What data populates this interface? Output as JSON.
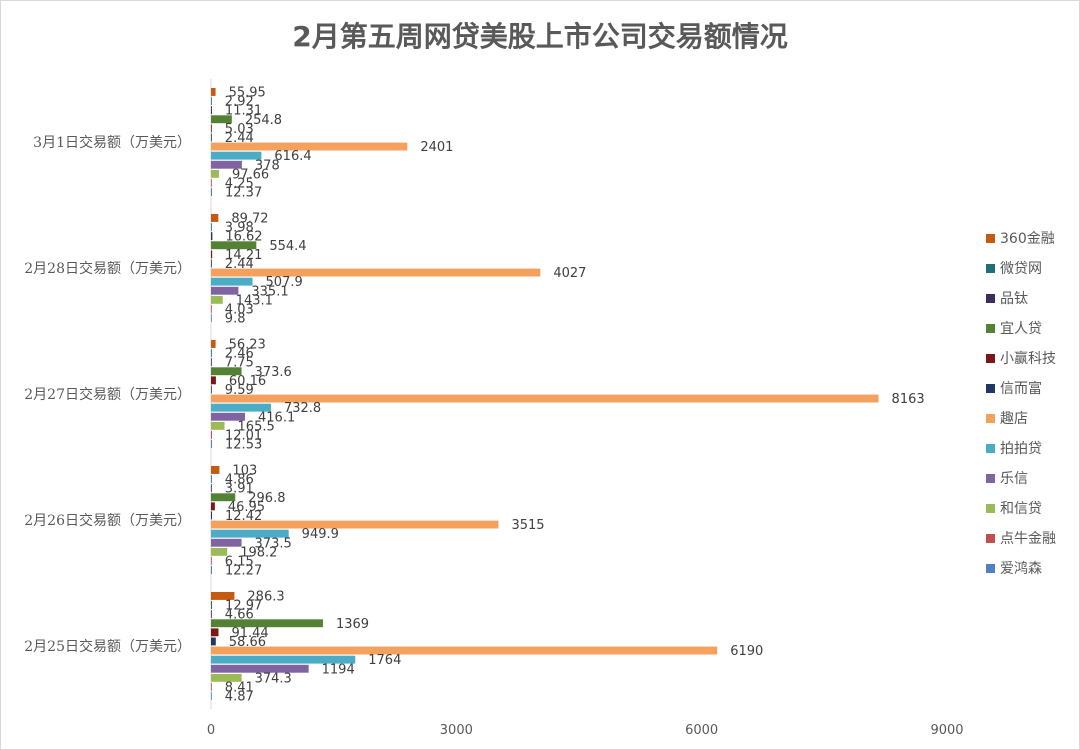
{
  "chart_data": {
    "type": "bar",
    "orientation": "horizontal",
    "title": "2月第五周网贷美股上市公司交易额情况",
    "categories": [
      "3月1日交易额（万美元）",
      "2月28日交易额（万美元）",
      "2月27日交易额（万美元）",
      "2月26日交易额（万美元）",
      "2月25日交易额（万美元）"
    ],
    "xlim": [
      0,
      9000
    ],
    "xticks": [
      0,
      3000,
      6000,
      9000
    ],
    "grid": false,
    "legend_position": "right",
    "series": [
      {
        "name": "360金融",
        "color": "#c55a11",
        "values": [
          55.95,
          89.72,
          56.23,
          103,
          286.3
        ],
        "labels": [
          "55.95",
          "89.72",
          "56.23",
          "103",
          "286.3"
        ]
      },
      {
        "name": "微贷网",
        "color": "#1f6e7a",
        "values": [
          2.92,
          3.98,
          2.46,
          4.86,
          12.97
        ],
        "labels": [
          "2.92",
          "3.98",
          "2.46",
          "4.86",
          "12.97"
        ]
      },
      {
        "name": "品钛",
        "color": "#3d2c60",
        "values": [
          11.31,
          16.62,
          7.75,
          3.91,
          4.66
        ],
        "labels": [
          "11.31",
          "16.62",
          "7.75",
          "3.91",
          "4.66"
        ]
      },
      {
        "name": "宜人贷",
        "color": "#548235",
        "values": [
          254.8,
          554.4,
          373.6,
          296.8,
          1369
        ],
        "labels": [
          "254.8",
          "554.4",
          "373.6",
          "296.8",
          "1369"
        ]
      },
      {
        "name": "小赢科技",
        "color": "#7b1717",
        "values": [
          5.03,
          14.21,
          60.16,
          46.95,
          91.44
        ],
        "labels": [
          "5.03",
          "14.21",
          "60.16",
          "46.95",
          "91.44"
        ]
      },
      {
        "name": "信而富",
        "color": "#203864",
        "values": [
          2.44,
          2.44,
          9.59,
          12.42,
          58.66
        ],
        "labels": [
          "2.44",
          "2.44",
          "9.59",
          "12.42",
          "58.66"
        ]
      },
      {
        "name": "趣店",
        "color": "#f4a15d",
        "values": [
          2401,
          4027,
          8163,
          3515,
          6190
        ],
        "labels": [
          "2401",
          "4027",
          "8163",
          "3515",
          "6190"
        ]
      },
      {
        "name": "拍拍贷",
        "color": "#4bacc6",
        "values": [
          616.4,
          507.9,
          732.8,
          949.9,
          1764
        ],
        "labels": [
          "616.4",
          "507.9",
          "732.8",
          "949.9",
          "1764"
        ]
      },
      {
        "name": "乐信",
        "color": "#8064a2",
        "values": [
          378,
          335.1,
          416.1,
          373.5,
          1194
        ],
        "labels": [
          "378",
          "335.1",
          "416.1",
          "373.5",
          "1194"
        ]
      },
      {
        "name": "和信贷",
        "color": "#9bbb59",
        "values": [
          97.66,
          143.1,
          165.5,
          198.2,
          374.3
        ],
        "labels": [
          "97.66",
          "143.1",
          "165.5",
          "198.2",
          "374.3"
        ]
      },
      {
        "name": "点牛金融",
        "color": "#c0504d",
        "values": [
          4.25,
          4.03,
          12.01,
          6.15,
          8.41
        ],
        "labels": [
          "4.25",
          "4.03",
          "12.01",
          "6.15",
          "8.41"
        ]
      },
      {
        "name": "爱鸿森",
        "color": "#4f81bd",
        "values": [
          12.37,
          9.8,
          12.53,
          12.27,
          4.87
        ],
        "labels": [
          "12.37",
          "9.8",
          "12.53",
          "12.27",
          "4.87"
        ]
      }
    ]
  }
}
